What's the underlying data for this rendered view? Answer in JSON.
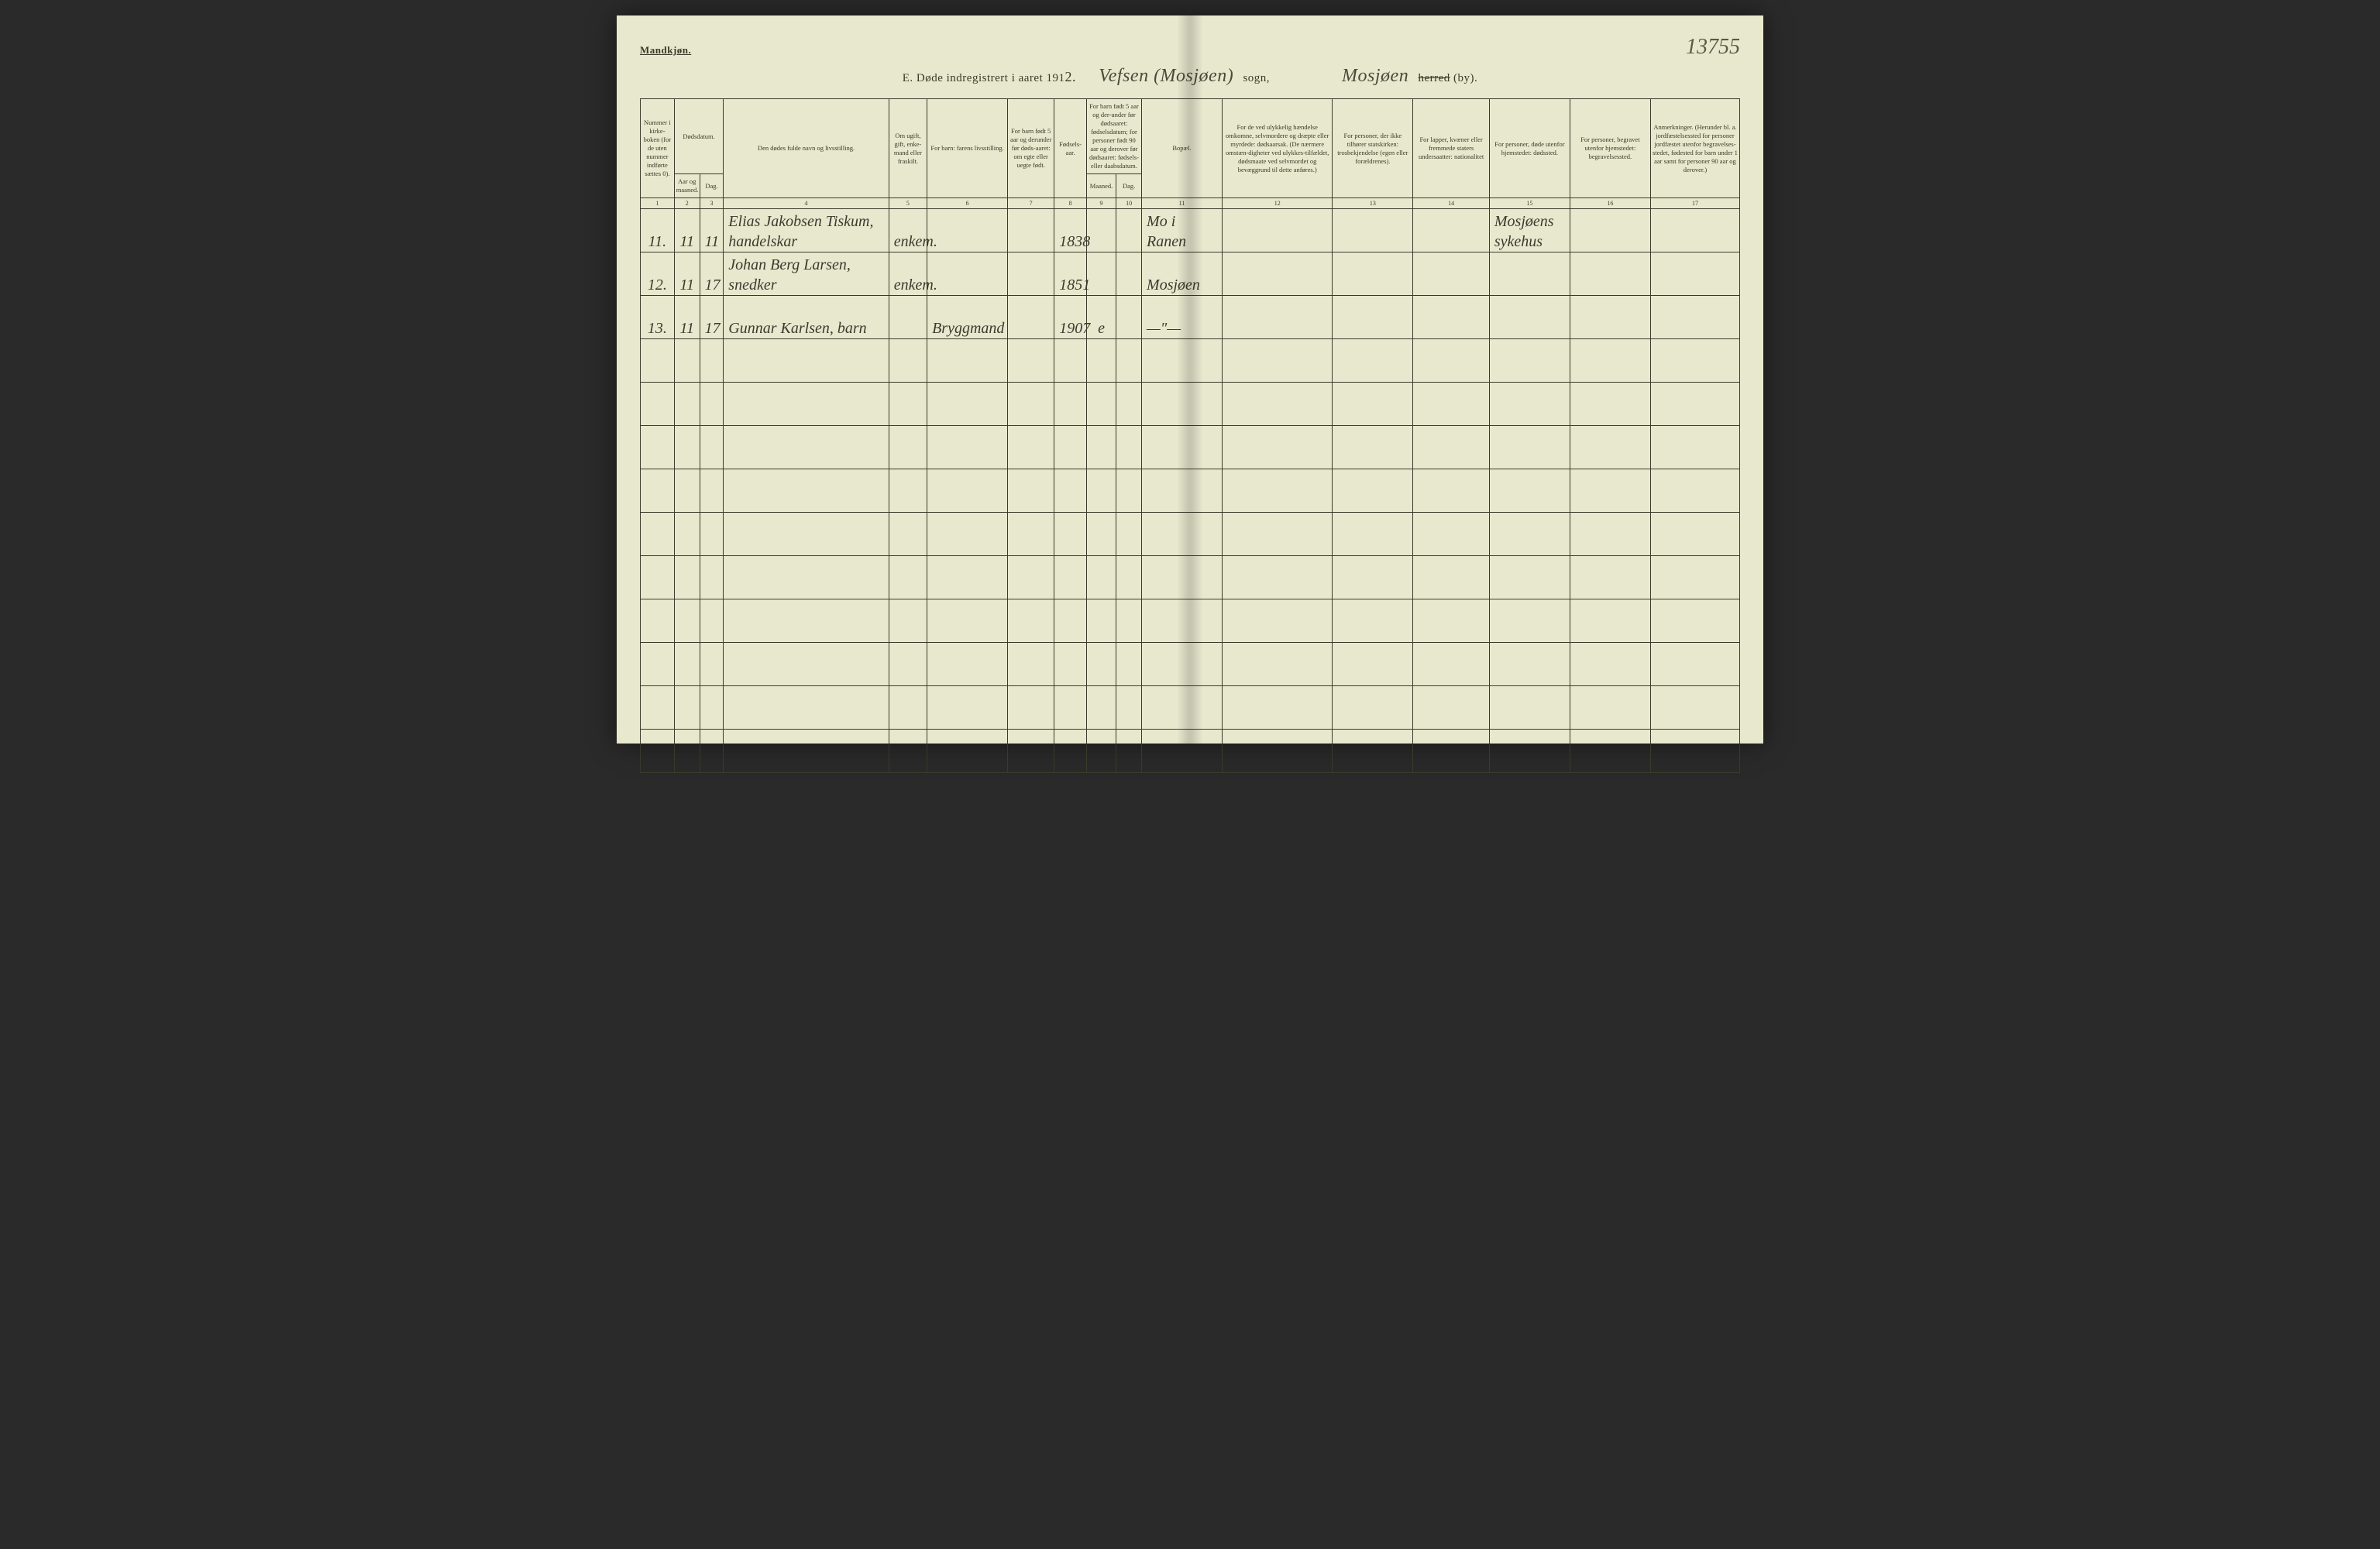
{
  "gender_label": "Mandkjøn.",
  "page_number": "13755",
  "title": {
    "prefix": "E.   Døde indregistrert i aaret 191",
    "year_fill": "2.",
    "parish_script": "Vefsen (Mosjøen)",
    "parish_label": "sogn,",
    "district_script": "Mosjøen",
    "district_struck": "herred",
    "district_suffix": "(by)."
  },
  "headers": {
    "c1": "Nummer i kirke-boken (for de uten nummer indførte sættes 0).",
    "c2_top": "Dødsdatum.",
    "c2a": "Aar og maaned.",
    "c2b": "Dag.",
    "c4": "Den dødes fulde navn og livsstilling.",
    "c5": "Om ugift, gift, enke-mand eller fraskilt.",
    "c6": "For barn: farens livsstilling.",
    "c7": "For barn født 5 aar og derunder før døds-aaret: om egte eller uegte født.",
    "c8": "Fødsels-aar.",
    "c9_top": "For barn født 5 aar og der-under før dødsaaret: fødselsdatum; for personer født 90 aar og derover før dødsaaret: fødsels- eller daabsdatum.",
    "c9a": "Maaned.",
    "c9b": "Dag.",
    "c11": "Bopæl.",
    "c12": "For de ved ulykkelig hændelse omkomne, selvmordere og dræpte eller myrdede: dødsaarsak. (De nærmere omstæn-digheter ved ulykkes-tilfældet, dødsmaate ved selvmordet og bevæggrund til dette anføres.)",
    "c13": "For personer, der ikke tilhører statskirken: trosbekjendelse (egen eller forældrenes).",
    "c14": "For lapper, kvæner eller fremmede staters undersaatter: nationalitet",
    "c15": "For personer, døde utenfor hjemstedet: dødssted.",
    "c16": "For personer, begravet utenfor hjemstedet: begravelsessted.",
    "c17": "Anmerkninger. (Herunder bl. a. jordfæstelsessted for personer jordfæstet utenfor begravelses-stedet, fødested for barn under 1 aar samt for personer 90 aar og derover.)"
  },
  "colnums": [
    "1",
    "2",
    "3",
    "4",
    "5",
    "6",
    "7",
    "8",
    "9",
    "10",
    "11",
    "12",
    "13",
    "14",
    "15",
    "16",
    "17"
  ],
  "rows": [
    {
      "num": "11.",
      "month": "11",
      "day": "11",
      "name": "Elias Jakobsen Tiskum, handelskar",
      "status": "enkem.",
      "father": "",
      "birth_note": "",
      "birth_year": "1838",
      "bm": "",
      "bd": "",
      "residence": "Mo i Ranen",
      "c12": "",
      "c13": "",
      "c14": "",
      "c15": "Mosjøens sykehus",
      "c16": "",
      "c17": ""
    },
    {
      "num": "12.",
      "month": "11",
      "day": "17",
      "name": "Johan Berg Larsen, snedker",
      "status": "enkem.",
      "father": "",
      "birth_note": "",
      "birth_year": "1851",
      "bm": "",
      "bd": "",
      "residence": "Mosjøen",
      "c12": "",
      "c13": "",
      "c14": "",
      "c15": "",
      "c16": "",
      "c17": ""
    },
    {
      "num": "13.",
      "month": "11",
      "day": "17",
      "name": "Gunnar Karlsen, barn",
      "status": "",
      "father": "Bryggmand",
      "birth_note": "",
      "birth_year": "1907",
      "bm": "e",
      "bd": "",
      "residence": "—\"—",
      "c12": "",
      "c13": "",
      "c14": "",
      "c15": "",
      "c16": "",
      "c17": ""
    }
  ],
  "empty_row_count": 10,
  "colors": {
    "paper": "#e8e8ce",
    "ink": "#3a3a2a",
    "script": "#3a3a2f",
    "background": "#2a2a2a"
  }
}
